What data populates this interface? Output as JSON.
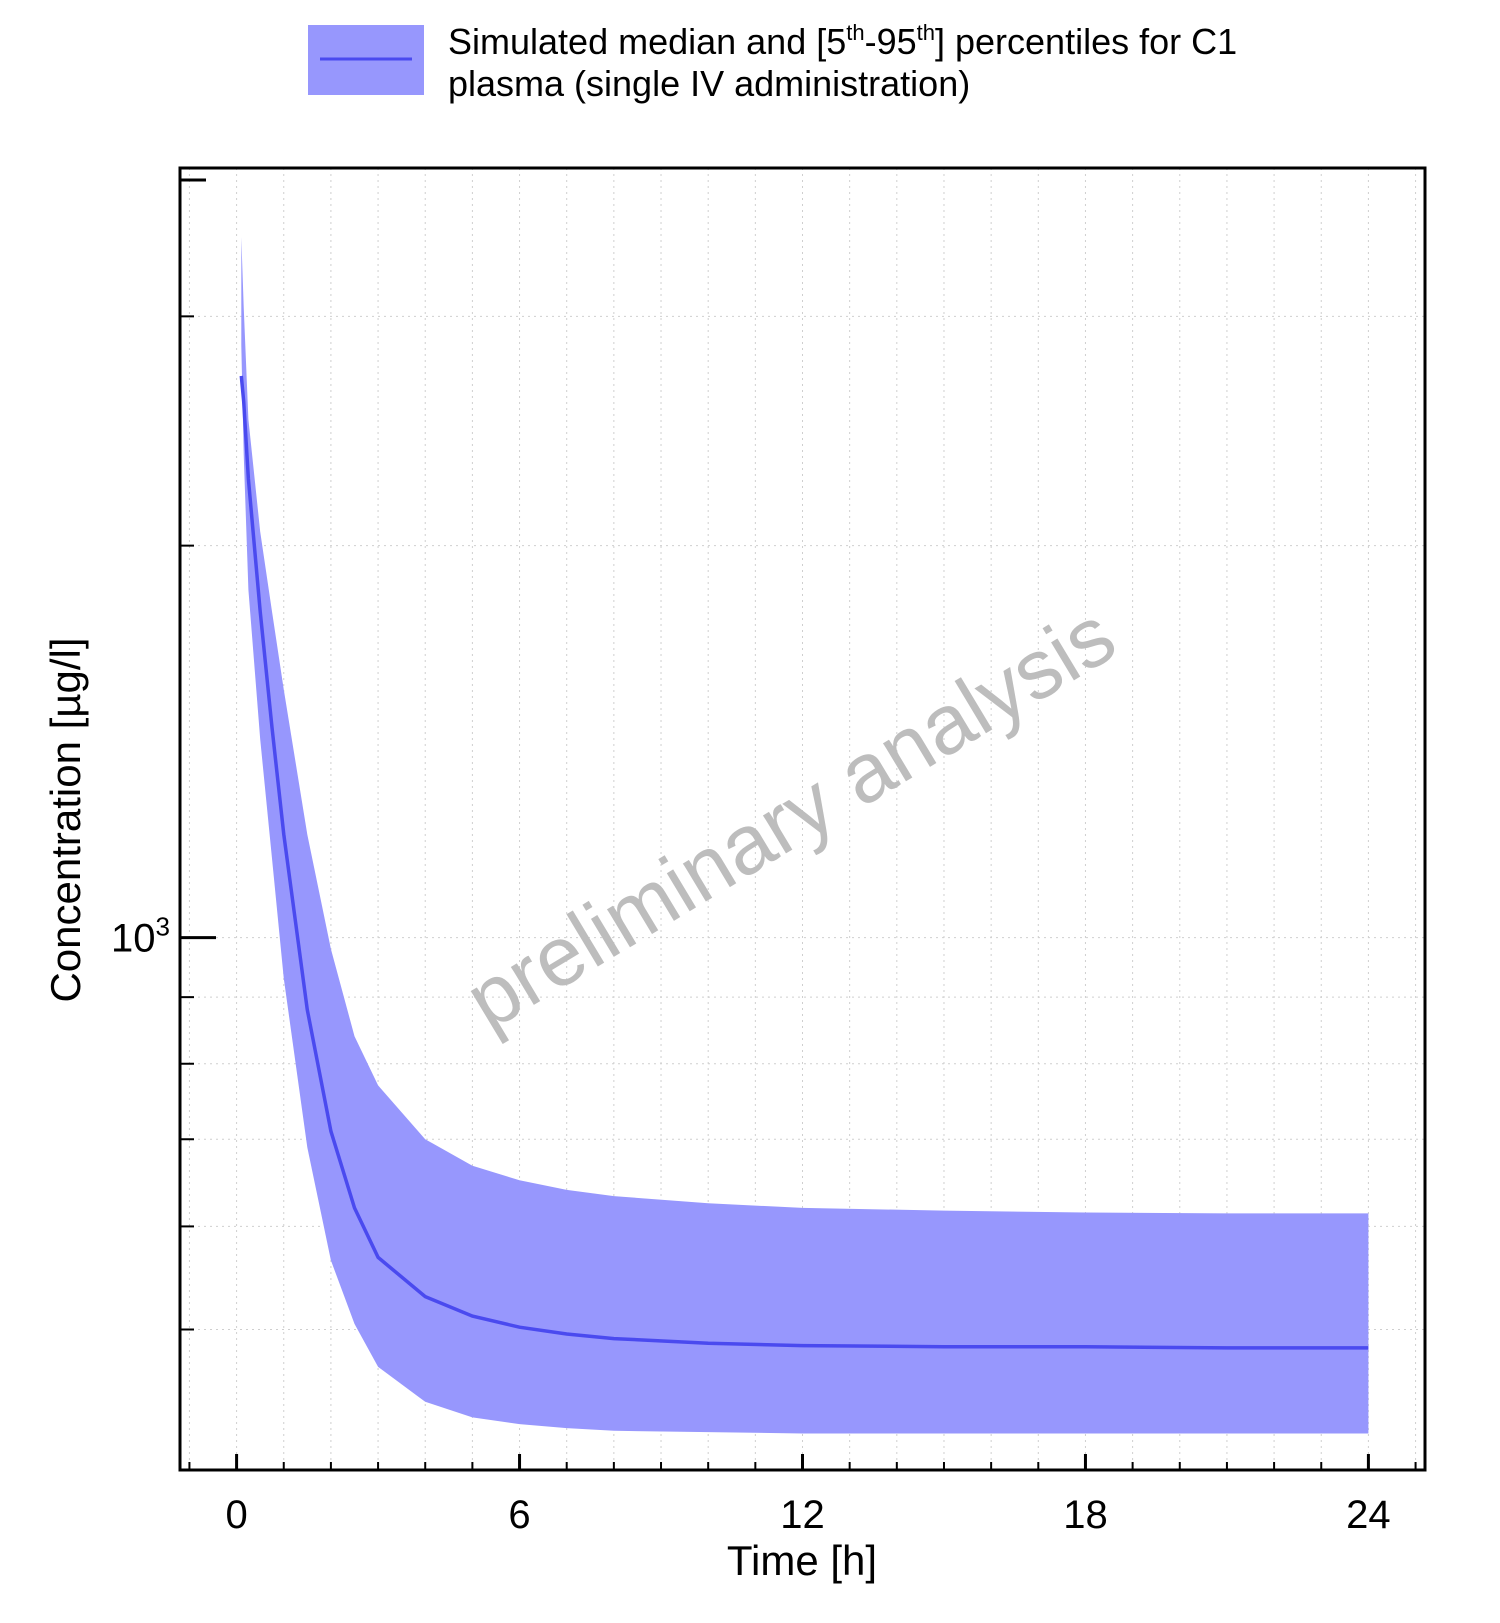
{
  "chart_data": {
    "type": "area",
    "title": "",
    "xlabel": "Time [h]",
    "ylabel": "Concentration [µg/l]",
    "yscale": "log",
    "xlim": [
      -1.2,
      25.2
    ],
    "ylim": [
      390,
      3900
    ],
    "x_ticks": [
      0,
      6,
      12,
      18,
      24
    ],
    "x_tick_labels": [
      "0",
      "6",
      "12",
      "18",
      "24"
    ],
    "y_major_ticks": [
      1000
    ],
    "y_major_tick_labels": [
      {
        "base": "10",
        "exp": "3"
      }
    ],
    "y_minor_ticks": [
      500,
      600,
      700,
      800,
      900,
      2000,
      3000
    ],
    "grid": true,
    "legend_position": "top",
    "legend": {
      "label_line1_parts": [
        "Simulated median and [5",
        "th",
        "-95",
        "th",
        "] percentiles for C1"
      ],
      "label_line2": "plasma (single IV administration)"
    },
    "series": [
      {
        "x": [
          0.1,
          0.15,
          0.25,
          0.5,
          0.75,
          1.0,
          1.5,
          2.0,
          2.5,
          3.0,
          4.0,
          5.0,
          6.0,
          7.0,
          8.0,
          10.0,
          12.0,
          15.0,
          18.0,
          21.0,
          24.0
        ],
        "median": [
          2700,
          2580,
          2250,
          1780,
          1450,
          1200,
          880,
          710,
          620,
          568,
          530,
          512,
          502,
          496,
          492,
          488,
          486,
          485,
          485,
          484,
          484
        ],
        "p5": [
          2850,
          2350,
          1850,
          1420,
          1150,
          930,
          690,
          565,
          505,
          468,
          440,
          428,
          423,
          420,
          418,
          417,
          416,
          416,
          416,
          416,
          416
        ],
        "p95": [
          3450,
          3050,
          2500,
          2050,
          1780,
          1550,
          1200,
          980,
          840,
          770,
          700,
          668,
          651,
          640,
          633,
          625,
          620,
          617,
          615,
          614,
          614
        ]
      }
    ],
    "band_color": "#9797fd",
    "line_color": "#4a4aef",
    "watermark": "preliminary analysis"
  }
}
